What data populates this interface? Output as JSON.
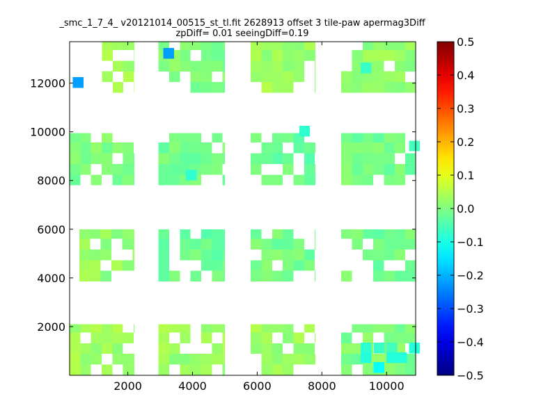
{
  "chart_data": {
    "type": "heatmap",
    "title_lines": [
      "_smc_1_7_4_ v20121014_00515_st_tl.fit 2628913 offset 3 tile-paw apermag3Diff",
      "zpDiff= 0.01 seeingDiff=0.19"
    ],
    "xlabel": "",
    "ylabel": "",
    "xlim": [
      200,
      10900
    ],
    "ylim": [
      0,
      13700
    ],
    "x_ticks": [
      2000,
      4000,
      6000,
      8000,
      10000
    ],
    "y_ticks": [
      2000,
      4000,
      6000,
      8000,
      10000,
      12000
    ],
    "x_tick_labels": [
      "2000",
      "4000",
      "6000",
      "8000",
      "10000"
    ],
    "y_tick_labels": [
      "2000",
      "4000",
      "6000",
      "8000",
      "10000",
      "12000"
    ],
    "cell_size": [
      330,
      440
    ],
    "colorbar": {
      "colormap": "jet",
      "range": [
        -0.5,
        0.5
      ],
      "ticks": [
        0.5,
        0.4,
        0.3,
        0.2,
        0.1,
        0.0,
        -0.1,
        -0.2,
        -0.3,
        -0.4,
        -0.5
      ],
      "tick_labels": [
        "0.5",
        "0.4",
        "0.3",
        "0.2",
        "0.1",
        "0.0",
        "−0.1",
        "−0.2",
        "−0.3",
        "−0.4",
        "−0.5"
      ]
    },
    "grid": false,
    "chips": [
      {
        "x0": 1200,
        "x1": 2200,
        "y0": 11600,
        "y1": 13700,
        "value": 0.03
      },
      {
        "x0": 2950,
        "x1": 5000,
        "y0": 11600,
        "y1": 13700,
        "value": 0.0
      },
      {
        "x0": 5800,
        "x1": 7800,
        "y0": 11600,
        "y1": 13700,
        "value": 0.03
      },
      {
        "x0": 8600,
        "x1": 10900,
        "y0": 11600,
        "y1": 13700,
        "value": 0.02
      },
      {
        "x0": 200,
        "x1": 2200,
        "y0": 7800,
        "y1": 9950,
        "value": 0.0
      },
      {
        "x0": 2950,
        "x1": 5000,
        "y0": 7800,
        "y1": 9950,
        "value": -0.01
      },
      {
        "x0": 5800,
        "x1": 7800,
        "y0": 7800,
        "y1": 9950,
        "value": -0.02
      },
      {
        "x0": 8600,
        "x1": 10900,
        "y0": 7800,
        "y1": 9950,
        "value": -0.01
      },
      {
        "x0": 500,
        "x1": 2200,
        "y0": 3850,
        "y1": 6000,
        "value": 0.02
      },
      {
        "x0": 2950,
        "x1": 5000,
        "y0": 3850,
        "y1": 6000,
        "value": -0.02
      },
      {
        "x0": 5800,
        "x1": 7800,
        "y0": 3850,
        "y1": 6000,
        "value": -0.01
      },
      {
        "x0": 8600,
        "x1": 10900,
        "y0": 3850,
        "y1": 6000,
        "value": -0.01
      },
      {
        "x0": 200,
        "x1": 2200,
        "y0": 0,
        "y1": 2100,
        "value": 0.03
      },
      {
        "x0": 2950,
        "x1": 5000,
        "y0": 0,
        "y1": 2100,
        "value": 0.03
      },
      {
        "x0": 5800,
        "x1": 7800,
        "y0": 0,
        "y1": 2100,
        "value": 0.03
      },
      {
        "x0": 8600,
        "x1": 10900,
        "y0": 0,
        "y1": 2100,
        "value": 0.0
      }
    ],
    "highlight_cells": [
      {
        "x": 300,
        "y": 11800,
        "value": -0.22
      },
      {
        "x": 3100,
        "y": 13000,
        "value": -0.22
      },
      {
        "x": 7300,
        "y": 9800,
        "value": -0.08
      },
      {
        "x": 9200,
        "y": 12400,
        "value": -0.07
      },
      {
        "x": 3800,
        "y": 8000,
        "value": -0.08
      },
      {
        "x": 10700,
        "y": 9200,
        "value": -0.06
      },
      {
        "x": 9200,
        "y": 900,
        "value": -0.08
      },
      {
        "x": 9600,
        "y": 900,
        "value": -0.07
      },
      {
        "x": 10000,
        "y": 900,
        "value": -0.06
      },
      {
        "x": 10700,
        "y": 900,
        "value": -0.09
      },
      {
        "x": 9200,
        "y": 500,
        "value": -0.09
      },
      {
        "x": 10000,
        "y": 500,
        "value": -0.09
      },
      {
        "x": 10300,
        "y": 500,
        "value": -0.09
      },
      {
        "x": 9600,
        "y": 100,
        "value": -0.12
      }
    ]
  }
}
